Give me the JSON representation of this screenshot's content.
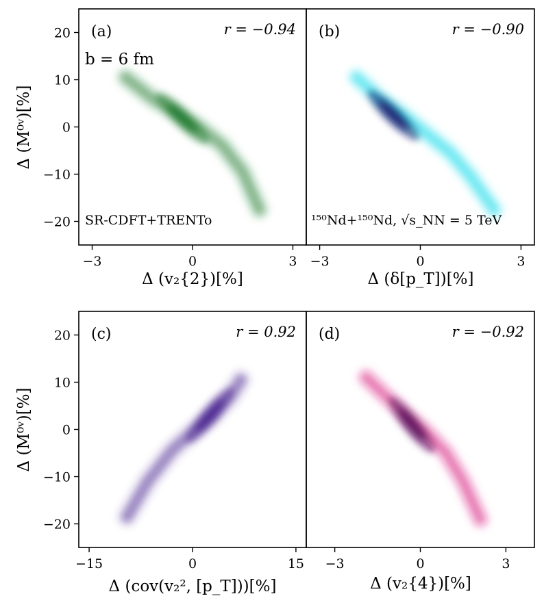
{
  "chart_data": [
    {
      "type": "scatter",
      "panel": "(a)",
      "correlation": "r = −0.94",
      "annotation_top": "b = 6 fm",
      "annotation_bottom": "SR-CDFT+TRENTo",
      "xlabel": "Δ (v₂{2})[%]",
      "ylabel": "Δ (M⁰ᵛ)[%]",
      "xlim": [
        -3.4,
        3.4
      ],
      "ylim": [
        -25,
        25
      ],
      "xticks": [
        -3,
        0,
        3
      ],
      "yticks": [
        -20,
        -10,
        0,
        10,
        20
      ],
      "color": "#1f7a2e",
      "spine": [
        [
          -2.0,
          10.5
        ],
        [
          -1.2,
          6.0
        ],
        [
          -0.5,
          3.0
        ],
        [
          0.2,
          0.0
        ],
        [
          0.9,
          -4.0
        ],
        [
          1.5,
          -9.5
        ],
        [
          2.0,
          -17.5
        ]
      ],
      "peak": [
        -0.3,
        1.8
      ]
    },
    {
      "type": "scatter",
      "panel": "(b)",
      "correlation": "r = −0.90",
      "annotation_bottom": "¹⁵⁰Nd+¹⁵⁰Nd, √s_NN = 5 TeV",
      "xlabel": "Δ (δ[p_T])[%]",
      "ylabel": "",
      "xlim": [
        -3.4,
        3.4
      ],
      "ylim": [
        -25,
        25
      ],
      "xticks": [
        -3,
        0,
        3
      ],
      "yticks": [],
      "color": "#00d8e8",
      "core_color": "#0b1a6e",
      "spine": [
        [
          -1.9,
          10.5
        ],
        [
          -1.2,
          6.0
        ],
        [
          -0.5,
          2.5
        ],
        [
          0.2,
          -1.5
        ],
        [
          0.9,
          -5.5
        ],
        [
          1.5,
          -10.5
        ],
        [
          2.2,
          -17.5
        ]
      ],
      "peak": [
        -0.8,
        2.5
      ]
    },
    {
      "type": "scatter",
      "panel": "(c)",
      "correlation": "r = 0.92",
      "xlabel": "Δ (cov(v₂², [p_T]))[%]",
      "ylabel": "Δ (M⁰ᵛ)[%]",
      "xlim": [
        -16.5,
        16.5
      ],
      "ylim": [
        -25,
        25
      ],
      "xticks": [
        -15,
        0,
        15
      ],
      "yticks": [
        -20,
        -10,
        0,
        10,
        20
      ],
      "color": "#4a2590",
      "spine": [
        [
          -9.5,
          -18.5
        ],
        [
          -6.5,
          -11.0
        ],
        [
          -3.0,
          -4.5
        ],
        [
          0.0,
          -0.5
        ],
        [
          3.0,
          3.0
        ],
        [
          5.5,
          7.0
        ],
        [
          7.0,
          10.5
        ]
      ],
      "peak": [
        2.5,
        3.0
      ]
    },
    {
      "type": "scatter",
      "panel": "(d)",
      "correlation": "r = −0.92",
      "xlabel": "Δ (v₂{4})[%]",
      "ylabel": "",
      "xlim": [
        -4.0,
        4.0
      ],
      "ylim": [
        -25,
        25
      ],
      "xticks": [
        -3,
        0,
        3
      ],
      "yticks": [],
      "color": "#d81b7a",
      "core_color": "#5a0a5a",
      "spine": [
        [
          -1.9,
          11.0
        ],
        [
          -1.2,
          7.0
        ],
        [
          -0.5,
          3.0
        ],
        [
          0.2,
          -0.5
        ],
        [
          0.9,
          -5.0
        ],
        [
          1.5,
          -11.0
        ],
        [
          2.1,
          -19.0
        ]
      ],
      "peak": [
        -0.3,
        1.0
      ]
    }
  ]
}
